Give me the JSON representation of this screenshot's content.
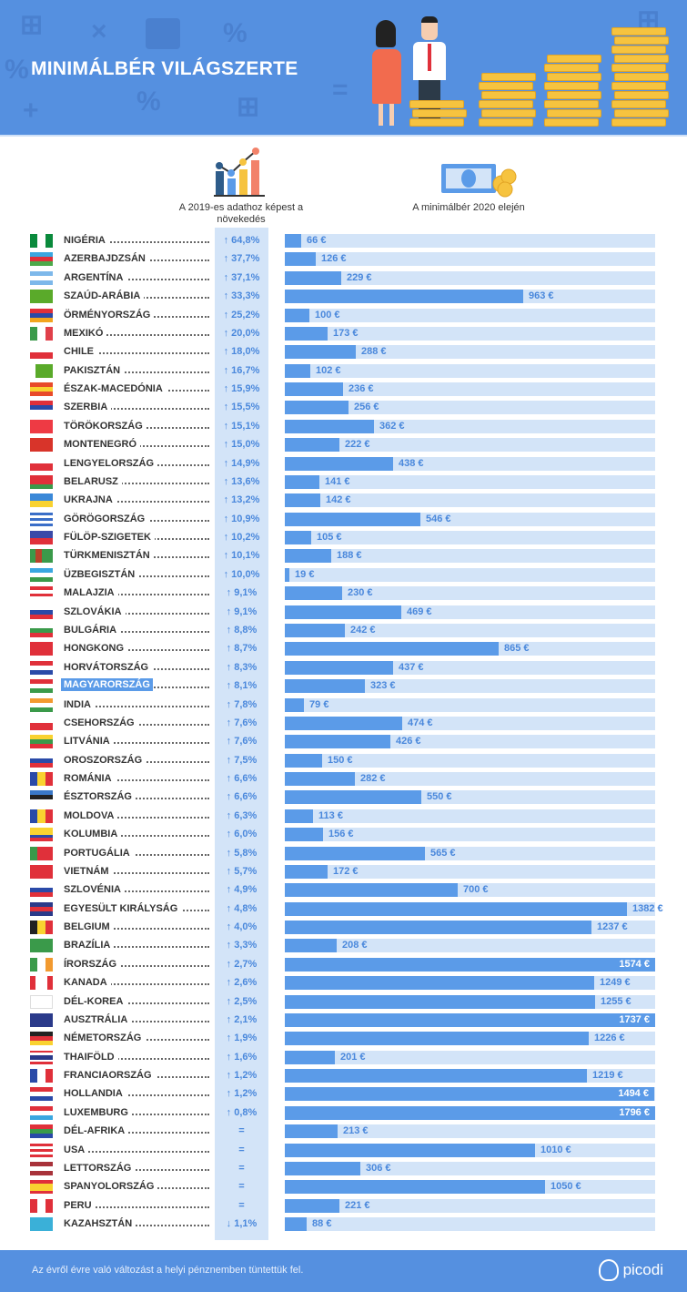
{
  "header": {
    "title": "MINIMÁLBÉR VILÁGSZERTE"
  },
  "columns": {
    "change": "A 2019-es adathoz képest a növekedés",
    "wage": "A minimálbér 2020 elején"
  },
  "footer": {
    "note": "Az évről évre való változást a helyi pénznemben tüntettük fel.",
    "brand": "picodi"
  },
  "colors": {
    "header": "#5590e0",
    "bar": "#5b9be8",
    "track": "#d3e4f8",
    "accent": "#4a88dc"
  },
  "chart_data": {
    "type": "bar",
    "title": "MINIMÁLBÉR VILÁGSZERTE",
    "xlabel": "A minimálbér 2020 elején",
    "unit": "€",
    "rows": [
      {
        "country": "NIGÉRIA",
        "change": "↑ 64,8%",
        "wage": 66,
        "flag": [
          "#0a8a3c",
          "#fff",
          "#0a8a3c"
        ],
        "dir": "v"
      },
      {
        "country": "AZERBAJDZSÁN",
        "change": "↑ 37,7%",
        "wage": 126,
        "flag": [
          "#3aa7e0",
          "#e0303a",
          "#4caa4a"
        ],
        "dir": "h"
      },
      {
        "country": "ARGENTÍNA",
        "change": "↑ 37,1%",
        "wage": 229,
        "flag": [
          "#7db8ea",
          "#fff",
          "#7db8ea"
        ],
        "dir": "h"
      },
      {
        "country": "SZAÚD-ARÁBIA",
        "change": "↑ 33,3%",
        "wage": 963,
        "flag": [
          "#5aaa2a"
        ],
        "dir": "h"
      },
      {
        "country": "ÖRMÉNYORSZÁG",
        "change": "↑ 25,2%",
        "wage": 100,
        "flag": [
          "#e0303a",
          "#2a4aa8",
          "#f2a51f"
        ],
        "dir": "h"
      },
      {
        "country": "MEXIKÓ",
        "change": "↑ 20,0%",
        "wage": 173,
        "flag": [
          "#3a9a4a",
          "#fff",
          "#e0404a"
        ],
        "dir": "v"
      },
      {
        "country": "CHILE",
        "change": "↑ 18,0%",
        "wage": 288,
        "flag": [
          "#fff",
          "#e0303a"
        ],
        "dir": "h"
      },
      {
        "country": "PAKISZTÁN",
        "change": "↑ 16,7%",
        "wage": 102,
        "flag": [
          "#fff",
          "#5aaa2a",
          "#5aaa2a",
          "#5aaa2a"
        ],
        "dir": "v"
      },
      {
        "country": "ÉSZAK-MACEDÓNIA",
        "change": "↑ 15,9%",
        "wage": 236,
        "flag": [
          "#e84a2a",
          "#f9d230",
          "#e84a2a"
        ],
        "dir": "h"
      },
      {
        "country": "SZERBIA",
        "change": "↑ 15,5%",
        "wage": 256,
        "flag": [
          "#e0303a",
          "#2a4aa8",
          "#fff"
        ],
        "dir": "h"
      },
      {
        "country": "TÖRÖKORSZÁG",
        "change": "↑ 15,1%",
        "wage": 362,
        "flag": [
          "#ee3a44"
        ],
        "dir": "h"
      },
      {
        "country": "MONTENEGRÓ",
        "change": "↑ 15,0%",
        "wage": 222,
        "flag": [
          "#d8342a"
        ],
        "dir": "h"
      },
      {
        "country": "LENGYELORSZÁG",
        "change": "↑ 14,9%",
        "wage": 438,
        "flag": [
          "#fff",
          "#e0303a"
        ],
        "dir": "h"
      },
      {
        "country": "BELARUSZ",
        "change": "↑ 13,6%",
        "wage": 141,
        "flag": [
          "#e0303a",
          "#e0303a",
          "#3a9a4a"
        ],
        "dir": "h"
      },
      {
        "country": "UKRAJNA",
        "change": "↑ 13,2%",
        "wage": 142,
        "flag": [
          "#3a88d8",
          "#f9d230"
        ],
        "dir": "h"
      },
      {
        "country": "GÖRÖGORSZÁG",
        "change": "↑ 10,9%",
        "wage": 546,
        "flag": [
          "#3a6ec8",
          "#fff",
          "#3a6ec8",
          "#fff",
          "#3a6ec8"
        ],
        "dir": "h"
      },
      {
        "country": "FÜLÖP-SZIGETEK",
        "change": "↑ 10,2%",
        "wage": 105,
        "flag": [
          "#3a4aa8",
          "#e0303a"
        ],
        "dir": "h"
      },
      {
        "country": "TÜRKMENISZTÁN",
        "change": "↑ 10,1%",
        "wage": 188,
        "flag": [
          "#3a9a4a",
          "#b8432a",
          "#3a9a4a",
          "#3a9a4a"
        ],
        "dir": "v"
      },
      {
        "country": "ÜZBEGISZTÁN",
        "change": "↑ 10,0%",
        "wage": 19,
        "flag": [
          "#3aa7e0",
          "#fff",
          "#3a9a4a"
        ],
        "dir": "h"
      },
      {
        "country": "MALAJZIA",
        "change": "↑ 9,1%",
        "wage": 230,
        "flag": [
          "#e0303a",
          "#fff",
          "#e0303a",
          "#fff"
        ],
        "dir": "h"
      },
      {
        "country": "SZLOVÁKIA",
        "change": "↑ 9,1%",
        "wage": 469,
        "flag": [
          "#fff",
          "#2a4aa8",
          "#e0303a"
        ],
        "dir": "h"
      },
      {
        "country": "BULGÁRIA",
        "change": "↑ 8,8%",
        "wage": 242,
        "flag": [
          "#fff",
          "#3a9a4a",
          "#e0303a"
        ],
        "dir": "h"
      },
      {
        "country": "HONGKONG",
        "change": "↑ 8,7%",
        "wage": 865,
        "flag": [
          "#e0303a"
        ],
        "dir": "h"
      },
      {
        "country": "HORVÁTORSZÁG",
        "change": "↑ 8,3%",
        "wage": 437,
        "flag": [
          "#e0303a",
          "#fff",
          "#2a4aa8"
        ],
        "dir": "h"
      },
      {
        "country": "MAGYARORSZÁG",
        "change": "↑ 8,1%",
        "wage": 323,
        "flag": [
          "#e0303a",
          "#fff",
          "#3a9a4a"
        ],
        "dir": "h",
        "highlight": true
      },
      {
        "country": "INDIA",
        "change": "↑ 7,8%",
        "wage": 79,
        "flag": [
          "#f29a30",
          "#fff",
          "#3a9a4a"
        ],
        "dir": "h"
      },
      {
        "country": "CSEHORSZÁG",
        "change": "↑ 7,6%",
        "wage": 474,
        "flag": [
          "#fff",
          "#e0303a"
        ],
        "dir": "h"
      },
      {
        "country": "LITVÁNIA",
        "change": "↑ 7,6%",
        "wage": 426,
        "flag": [
          "#f9d230",
          "#3a9a4a",
          "#e0303a"
        ],
        "dir": "h"
      },
      {
        "country": "OROSZORSZÁG",
        "change": "↑ 7,5%",
        "wage": 150,
        "flag": [
          "#fff",
          "#2a4aa8",
          "#e0303a"
        ],
        "dir": "h"
      },
      {
        "country": "ROMÁNIA",
        "change": "↑ 6,6%",
        "wage": 282,
        "flag": [
          "#2a4aa8",
          "#f9d230",
          "#e0303a"
        ],
        "dir": "v"
      },
      {
        "country": "ÉSZTORSZÁG",
        "change": "↑ 6,6%",
        "wage": 550,
        "flag": [
          "#3a78c8",
          "#222",
          "#fff"
        ],
        "dir": "h"
      },
      {
        "country": "MOLDOVA",
        "change": "↑ 6,3%",
        "wage": 113,
        "flag": [
          "#2a4aa8",
          "#f9d230",
          "#e0303a"
        ],
        "dir": "v"
      },
      {
        "country": "KOLUMBIA",
        "change": "↑ 6,0%",
        "wage": 156,
        "flag": [
          "#f9d230",
          "#f9d230",
          "#2a4aa8",
          "#e0303a"
        ],
        "dir": "h"
      },
      {
        "country": "PORTUGÁLIA",
        "change": "↑ 5,8%",
        "wage": 565,
        "flag": [
          "#3a9a4a",
          "#e0303a",
          "#e0303a"
        ],
        "dir": "v"
      },
      {
        "country": "VIETNÁM",
        "change": "↑ 5,7%",
        "wage": 172,
        "flag": [
          "#e0303a"
        ],
        "dir": "h"
      },
      {
        "country": "SZLOVÉNIA",
        "change": "↑ 4,9%",
        "wage": 700,
        "flag": [
          "#fff",
          "#2a4aa8",
          "#e0303a"
        ],
        "dir": "h"
      },
      {
        "country": "EGYESÜLT KIRÁLYSÁG",
        "change": "↑ 4,8%",
        "wage": 1382,
        "flag": [
          "#2a3a8a",
          "#e0303a",
          "#2a3a8a"
        ],
        "dir": "h"
      },
      {
        "country": "BELGIUM",
        "change": "↑ 4,0%",
        "wage": 1237,
        "flag": [
          "#222",
          "#f9d230",
          "#e0303a"
        ],
        "dir": "v"
      },
      {
        "country": "BRAZÍLIA",
        "change": "↑ 3,3%",
        "wage": 208,
        "flag": [
          "#3a9a4a"
        ],
        "dir": "h"
      },
      {
        "country": "ÍRORSZÁG",
        "change": "↑ 2,7%",
        "wage": 1574,
        "flag": [
          "#3a9a4a",
          "#fff",
          "#f29a30"
        ],
        "dir": "v"
      },
      {
        "country": "KANADA",
        "change": "↑ 2,6%",
        "wage": 1249,
        "flag": [
          "#e0303a",
          "#fff",
          "#fff",
          "#e0303a"
        ],
        "dir": "v"
      },
      {
        "country": "DÉL-KOREA",
        "change": "↑ 2,5%",
        "wage": 1255,
        "flag": [
          "#fff"
        ],
        "dir": "h"
      },
      {
        "country": "AUSZTRÁLIA",
        "change": "↑ 2,1%",
        "wage": 1737,
        "flag": [
          "#2a3a8a"
        ],
        "dir": "h"
      },
      {
        "country": "NÉMETORSZÁG",
        "change": "↑ 1,9%",
        "wage": 1226,
        "flag": [
          "#222",
          "#e0303a",
          "#f9d230"
        ],
        "dir": "h"
      },
      {
        "country": "THAIFÖLD",
        "change": "↑ 1,6%",
        "wage": 201,
        "flag": [
          "#e0303a",
          "#fff",
          "#2a3a8a",
          "#2a3a8a",
          "#fff",
          "#e0303a"
        ],
        "dir": "h"
      },
      {
        "country": "FRANCIAORSZÁG",
        "change": "↑ 1,2%",
        "wage": 1219,
        "flag": [
          "#2a4aa8",
          "#fff",
          "#e0303a"
        ],
        "dir": "v"
      },
      {
        "country": "HOLLANDIA",
        "change": "↑ 1,2%",
        "wage": 1494,
        "flag": [
          "#e0303a",
          "#fff",
          "#2a4aa8"
        ],
        "dir": "h"
      },
      {
        "country": "LUXEMBURG",
        "change": "↑ 0,8%",
        "wage": 1796,
        "flag": [
          "#e0303a",
          "#fff",
          "#3aa7e0"
        ],
        "dir": "h"
      },
      {
        "country": "DÉL-AFRIKA",
        "change": "=",
        "wage": 213,
        "flag": [
          "#e0303a",
          "#3a9a4a",
          "#2a4aa8"
        ],
        "dir": "h"
      },
      {
        "country": "USA",
        "change": "=",
        "wage": 1010,
        "flag": [
          "#e0303a",
          "#fff",
          "#e0303a",
          "#fff",
          "#e0303a"
        ],
        "dir": "h"
      },
      {
        "country": "LETTORSZÁG",
        "change": "=",
        "wage": 306,
        "flag": [
          "#a8323a",
          "#fff",
          "#a8323a"
        ],
        "dir": "h"
      },
      {
        "country": "SPANYOLORSZÁG",
        "change": "=",
        "wage": 1050,
        "flag": [
          "#e0303a",
          "#f9d230",
          "#f9d230",
          "#e0303a"
        ],
        "dir": "h"
      },
      {
        "country": "PERU",
        "change": "=",
        "wage": 221,
        "flag": [
          "#e0303a",
          "#fff",
          "#e0303a"
        ],
        "dir": "v"
      },
      {
        "country": "KAZAHSZTÁN",
        "change": "↓ 1,1%",
        "wage": 88,
        "flag": [
          "#3ab0d8"
        ],
        "dir": "h"
      }
    ]
  }
}
